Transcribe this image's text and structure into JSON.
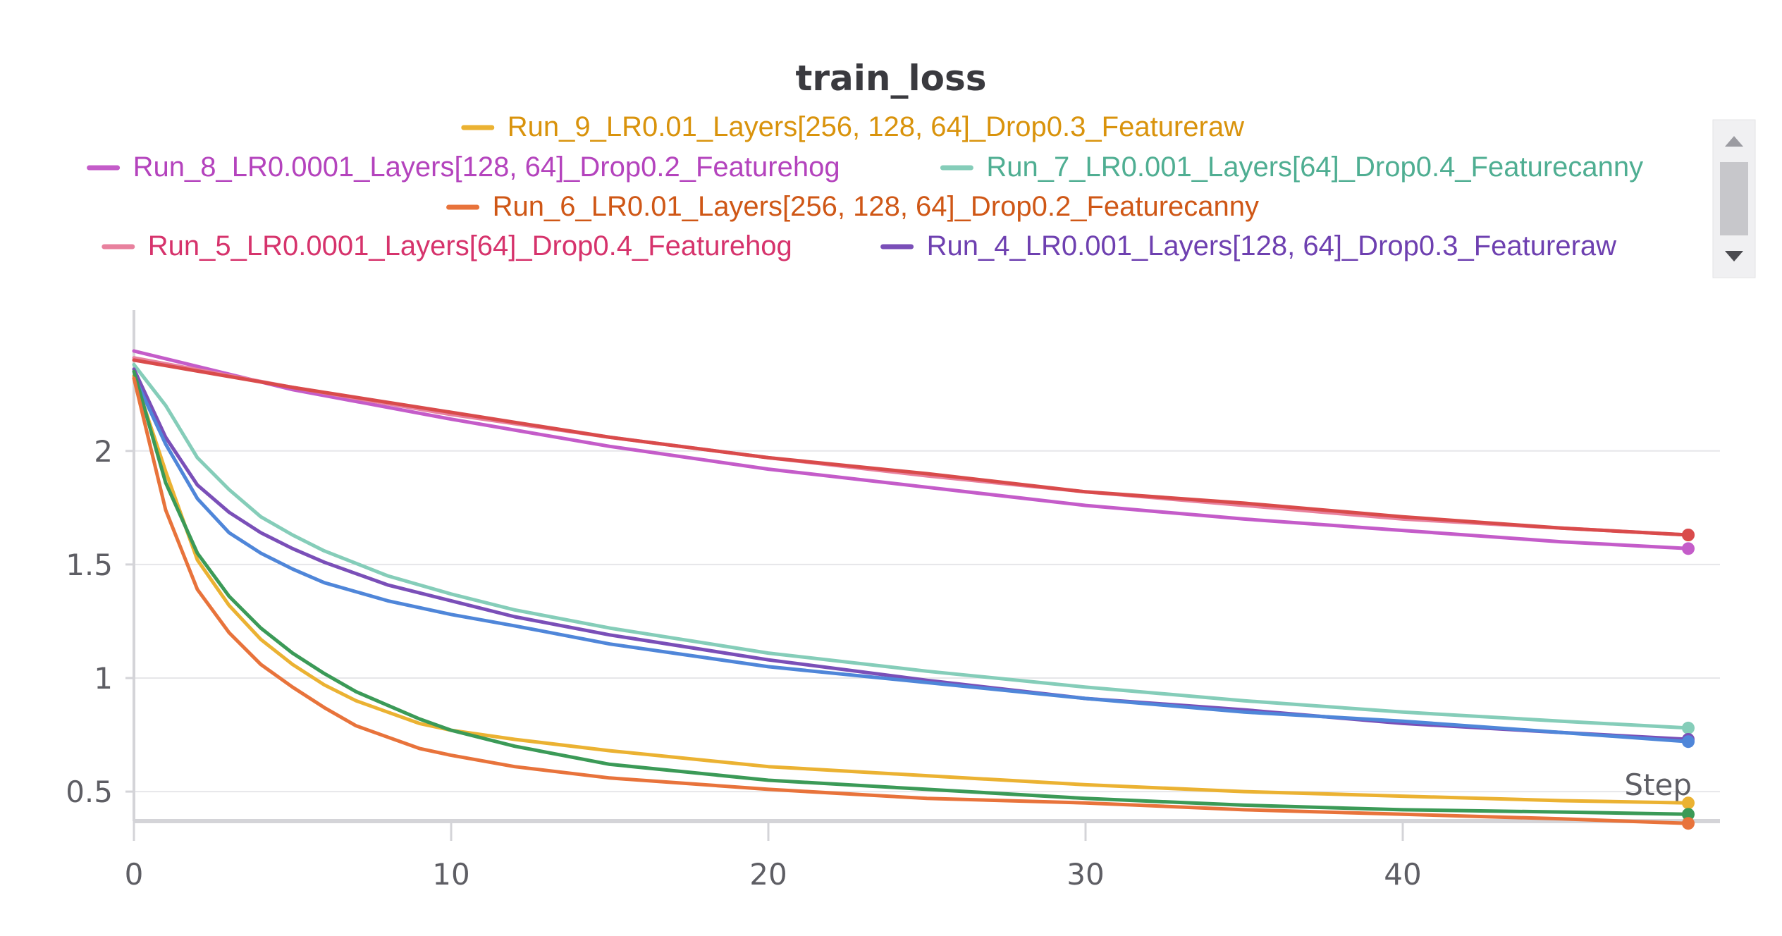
{
  "chart_data": {
    "type": "line",
    "title": "train_loss",
    "xlabel": "Step",
    "ylabel": "",
    "xlim": [
      0,
      50
    ],
    "ylim": [
      0.37,
      2.62
    ],
    "x_ticks": [
      0,
      10,
      20,
      30,
      40
    ],
    "y_ticks": [
      0.5,
      1,
      1.5,
      2
    ],
    "x_tick_labels": [
      "0",
      "10",
      "20",
      "30",
      "40"
    ],
    "y_tick_labels": [
      "0.5",
      "1",
      "1.5",
      "2"
    ],
    "grid": true,
    "legend_position": "top",
    "legend": [
      {
        "name": "Run_9_LR0.01_Layers[256, 128, 64]_Drop0.3_Featureraw",
        "color": "#ebb232",
        "text_color": "#d9930c"
      },
      {
        "name": "Run_8_LR0.0001_Layers[128, 64]_Drop0.2_Featurehog",
        "color": "#c45cc9",
        "text_color": "#b443bd"
      },
      {
        "name": "Run_7_LR0.001_Layers[64]_Drop0.4_Featurecanny",
        "color": "#85cdb9",
        "text_color": "#4fae92"
      },
      {
        "name": "Run_6_LR0.01_Layers[256, 128, 64]_Drop0.2_Featurecanny",
        "color": "#e8733b",
        "text_color": "#cf5716"
      },
      {
        "name": "Run_5_LR0.0001_Layers[64]_Drop0.4_Featurehog",
        "color": "#e8819e",
        "text_color": "#d6336c"
      },
      {
        "name": "Run_4_LR0.001_Layers[128, 64]_Drop0.3_Featureraw",
        "color": "#7a4fb8",
        "text_color": "#6e40b0"
      }
    ],
    "series": [
      {
        "name": "Run_8_LR0.0001_Layers[128, 64]_Drop0.2_Featurehog",
        "color": "#c45cc9",
        "points": [
          [
            0,
            2.44
          ],
          [
            5,
            2.27
          ],
          [
            10,
            2.14
          ],
          [
            15,
            2.02
          ],
          [
            20,
            1.92
          ],
          [
            25,
            1.84
          ],
          [
            30,
            1.76
          ],
          [
            35,
            1.7
          ],
          [
            40,
            1.65
          ],
          [
            45,
            1.6
          ],
          [
            49,
            1.57
          ]
        ]
      },
      {
        "name": "Run_5_LR0.0001_Layers[64]_Drop0.4_Featurehog",
        "color": "#e8819e",
        "points": [
          [
            0,
            2.41
          ],
          [
            5,
            2.28
          ],
          [
            10,
            2.16
          ],
          [
            15,
            2.06
          ],
          [
            20,
            1.97
          ],
          [
            25,
            1.89
          ],
          [
            30,
            1.82
          ],
          [
            35,
            1.76
          ],
          [
            40,
            1.7
          ],
          [
            45,
            1.66
          ],
          [
            49,
            1.63
          ]
        ]
      },
      {
        "name": "",
        "color": "#d94b4b",
        "points": [
          [
            0,
            2.4
          ],
          [
            5,
            2.28
          ],
          [
            10,
            2.17
          ],
          [
            15,
            2.06
          ],
          [
            20,
            1.97
          ],
          [
            25,
            1.9
          ],
          [
            30,
            1.82
          ],
          [
            35,
            1.77
          ],
          [
            40,
            1.71
          ],
          [
            45,
            1.66
          ],
          [
            49,
            1.63
          ]
        ]
      },
      {
        "name": "Run_7_LR0.001_Layers[64]_Drop0.4_Featurecanny",
        "color": "#85cdb9",
        "points": [
          [
            0,
            2.38
          ],
          [
            1,
            2.2
          ],
          [
            2,
            1.97
          ],
          [
            3,
            1.83
          ],
          [
            4,
            1.71
          ],
          [
            5,
            1.63
          ],
          [
            6,
            1.56
          ],
          [
            8,
            1.45
          ],
          [
            10,
            1.37
          ],
          [
            12,
            1.3
          ],
          [
            15,
            1.22
          ],
          [
            20,
            1.11
          ],
          [
            25,
            1.03
          ],
          [
            30,
            0.96
          ],
          [
            35,
            0.9
          ],
          [
            40,
            0.85
          ],
          [
            45,
            0.81
          ],
          [
            49,
            0.78
          ]
        ]
      },
      {
        "name": "Run_4_LR0.001_Layers[128, 64]_Drop0.3_Featureraw",
        "color": "#7a4fb8",
        "points": [
          [
            0,
            2.36
          ],
          [
            1,
            2.06
          ],
          [
            2,
            1.85
          ],
          [
            3,
            1.73
          ],
          [
            4,
            1.64
          ],
          [
            5,
            1.57
          ],
          [
            6,
            1.51
          ],
          [
            8,
            1.41
          ],
          [
            10,
            1.34
          ],
          [
            12,
            1.27
          ],
          [
            15,
            1.19
          ],
          [
            20,
            1.08
          ],
          [
            25,
            0.99
          ],
          [
            30,
            0.91
          ],
          [
            35,
            0.86
          ],
          [
            40,
            0.8
          ],
          [
            45,
            0.76
          ],
          [
            49,
            0.73
          ]
        ]
      },
      {
        "name": "",
        "color": "#4f86d9",
        "points": [
          [
            0,
            2.33
          ],
          [
            1,
            2.03
          ],
          [
            2,
            1.79
          ],
          [
            3,
            1.64
          ],
          [
            4,
            1.55
          ],
          [
            5,
            1.48
          ],
          [
            6,
            1.42
          ],
          [
            8,
            1.34
          ],
          [
            10,
            1.28
          ],
          [
            12,
            1.23
          ],
          [
            15,
            1.15
          ],
          [
            20,
            1.05
          ],
          [
            25,
            0.98
          ],
          [
            30,
            0.91
          ],
          [
            35,
            0.85
          ],
          [
            40,
            0.81
          ],
          [
            45,
            0.76
          ],
          [
            49,
            0.72
          ]
        ]
      },
      {
        "name": "Run_9_LR0.01_Layers[256, 128, 64]_Drop0.3_Featureraw",
        "color": "#ebb232",
        "points": [
          [
            0,
            2.33
          ],
          [
            1,
            1.91
          ],
          [
            2,
            1.52
          ],
          [
            3,
            1.32
          ],
          [
            4,
            1.17
          ],
          [
            5,
            1.06
          ],
          [
            6,
            0.97
          ],
          [
            7,
            0.9
          ],
          [
            8,
            0.85
          ],
          [
            9,
            0.8
          ],
          [
            10,
            0.77
          ],
          [
            12,
            0.73
          ],
          [
            15,
            0.68
          ],
          [
            20,
            0.61
          ],
          [
            25,
            0.57
          ],
          [
            30,
            0.53
          ],
          [
            35,
            0.5
          ],
          [
            40,
            0.48
          ],
          [
            45,
            0.46
          ],
          [
            49,
            0.45
          ]
        ]
      },
      {
        "name": "",
        "color": "#3b9a57",
        "points": [
          [
            0,
            2.35
          ],
          [
            1,
            1.86
          ],
          [
            2,
            1.55
          ],
          [
            3,
            1.36
          ],
          [
            4,
            1.22
          ],
          [
            5,
            1.11
          ],
          [
            6,
            1.02
          ],
          [
            7,
            0.94
          ],
          [
            8,
            0.88
          ],
          [
            9,
            0.82
          ],
          [
            10,
            0.77
          ],
          [
            12,
            0.7
          ],
          [
            15,
            0.62
          ],
          [
            20,
            0.55
          ],
          [
            25,
            0.51
          ],
          [
            30,
            0.47
          ],
          [
            35,
            0.44
          ],
          [
            40,
            0.42
          ],
          [
            45,
            0.41
          ],
          [
            49,
            0.4
          ]
        ]
      },
      {
        "name": "Run_6_LR0.01_Layers[256, 128, 64]_Drop0.2_Featurecanny",
        "color": "#e8733b",
        "points": [
          [
            0,
            2.32
          ],
          [
            1,
            1.74
          ],
          [
            2,
            1.39
          ],
          [
            3,
            1.2
          ],
          [
            4,
            1.06
          ],
          [
            5,
            0.96
          ],
          [
            6,
            0.87
          ],
          [
            7,
            0.79
          ],
          [
            8,
            0.74
          ],
          [
            9,
            0.69
          ],
          [
            10,
            0.66
          ],
          [
            12,
            0.61
          ],
          [
            15,
            0.56
          ],
          [
            20,
            0.51
          ],
          [
            25,
            0.47
          ],
          [
            30,
            0.45
          ],
          [
            35,
            0.42
          ],
          [
            40,
            0.4
          ],
          [
            45,
            0.38
          ],
          [
            49,
            0.36
          ]
        ]
      }
    ]
  }
}
